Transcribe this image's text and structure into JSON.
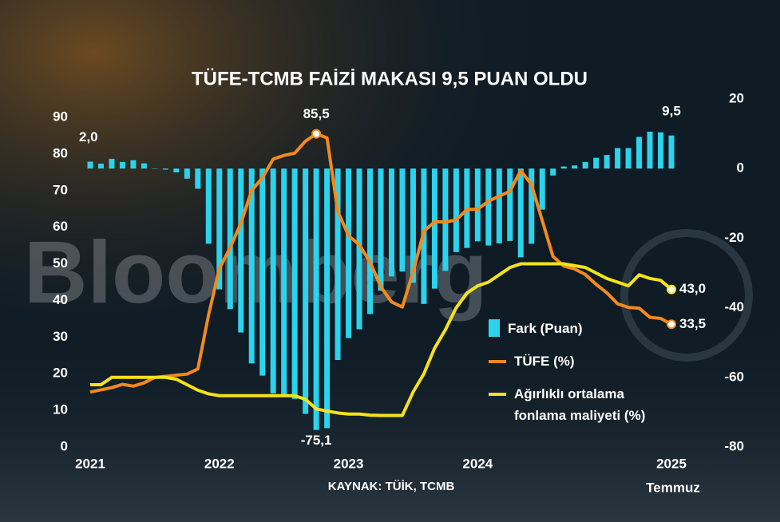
{
  "chart_data": {
    "type": "bar-line",
    "title": "TÜFE-TCMB FAİZİ MAKASI 9,5 PUAN OLDU",
    "watermark": "Bloomberg",
    "source": "KAYNAK: TÜİK, TCMB",
    "x_note": "Temmuz",
    "x": [
      0,
      1,
      2,
      3,
      4,
      5,
      6,
      7,
      8,
      9,
      10,
      11,
      12,
      13,
      14,
      15,
      16,
      17,
      18,
      19,
      20,
      21,
      22,
      23,
      24,
      25,
      26,
      27,
      28,
      29,
      30,
      31,
      32,
      33,
      34,
      35,
      36,
      37,
      38,
      39,
      40,
      41,
      42,
      43,
      44,
      45,
      46,
      47,
      48,
      49,
      50,
      51,
      52,
      53,
      54
    ],
    "xlim": [
      0,
      54
    ],
    "xticks": [
      {
        "value": 0,
        "label": "2021"
      },
      {
        "value": 12,
        "label": "2022"
      },
      {
        "value": 24,
        "label": "2023"
      },
      {
        "value": 36,
        "label": "2024"
      },
      {
        "value": 54,
        "label": "2025"
      }
    ],
    "ylim": [
      0,
      90
    ],
    "yticks": [
      0,
      10,
      20,
      30,
      40,
      50,
      60,
      70,
      80,
      90
    ],
    "y2lim": [
      -80,
      20
    ],
    "y2ticks": [
      -80,
      -60,
      -40,
      -20,
      0,
      20
    ],
    "series": [
      {
        "name": "Fark (Puan)",
        "type": "bar",
        "axis": "y2",
        "color": "#2bd3ec",
        "values": [
          2.0,
          1.4,
          2.8,
          1.9,
          2.4,
          1.5,
          0.0,
          -0.3,
          -1.1,
          -2.9,
          -5.8,
          -21.6,
          -34.7,
          -40.4,
          -47.1,
          -56.0,
          -59.5,
          -64.6,
          -65.6,
          -66.2,
          -70.5,
          -75.1,
          -74.6,
          -55.0,
          -48.7,
          -46.2,
          -41.8,
          -35.1,
          -31.0,
          -29.6,
          -32.8,
          -38.9,
          -34.5,
          -29.4,
          -24.0,
          -22.8,
          -20.9,
          -22.1,
          -21.5,
          -20.8,
          -25.5,
          -21.6,
          -11.8,
          -2.0,
          0.6,
          0.9,
          1.9,
          3.1,
          3.9,
          5.9,
          5.9,
          9.1,
          10.6,
          10.4,
          9.5
        ],
        "value_labels": [
          "2,0",
          null,
          null,
          null,
          null,
          null,
          null,
          null,
          null,
          null,
          null,
          null,
          null,
          null,
          null,
          null,
          null,
          null,
          null,
          null,
          null,
          "-75,1",
          null,
          null,
          null,
          null,
          null,
          null,
          null,
          null,
          null,
          null,
          null,
          null,
          null,
          null,
          null,
          null,
          null,
          null,
          null,
          null,
          null,
          null,
          null,
          null,
          null,
          null,
          null,
          null,
          null,
          null,
          null,
          null,
          "9,5"
        ]
      },
      {
        "name": "TÜFE (%)",
        "type": "line",
        "color": "#f28a1e",
        "values": [
          15.0,
          15.6,
          16.2,
          17.1,
          16.6,
          17.5,
          19.0,
          19.3,
          19.6,
          19.9,
          21.3,
          36.1,
          48.7,
          54.4,
          61.1,
          70.0,
          73.5,
          78.6,
          79.6,
          80.2,
          83.5,
          85.5,
          84.4,
          64.3,
          57.7,
          55.2,
          50.5,
          43.7,
          39.6,
          38.2,
          47.8,
          58.9,
          61.5,
          61.4,
          62.0,
          64.8,
          64.9,
          67.1,
          68.5,
          69.8,
          75.5,
          71.6,
          61.8,
          52.0,
          49.4,
          48.6,
          47.1,
          44.4,
          42.1,
          39.1,
          38.1,
          37.9,
          35.4,
          35.1,
          33.5
        ],
        "value_labels": [
          null,
          null,
          null,
          null,
          null,
          null,
          null,
          null,
          null,
          null,
          null,
          null,
          null,
          null,
          null,
          null,
          null,
          null,
          null,
          null,
          null,
          "85,5",
          null,
          null,
          null,
          null,
          null,
          null,
          null,
          null,
          null,
          null,
          null,
          null,
          null,
          null,
          null,
          null,
          null,
          null,
          null,
          null,
          null,
          null,
          null,
          null,
          null,
          null,
          null,
          null,
          null,
          null,
          null,
          null,
          "33,5"
        ]
      },
      {
        "name": "Ağırlıklı ortalama fonlama maliyeti (%)",
        "type": "line",
        "color": "#f6e21c",
        "values": [
          17,
          17,
          19,
          19,
          19,
          19,
          19,
          19,
          18.5,
          17,
          15.5,
          14.5,
          14,
          14,
          14,
          14,
          14,
          14,
          14,
          14,
          13,
          10.4,
          9.8,
          9.3,
          9,
          9,
          8.7,
          8.6,
          8.6,
          8.6,
          15,
          20,
          27,
          32,
          38,
          42,
          44,
          45,
          47,
          49,
          50,
          50,
          50,
          50,
          50,
          49.5,
          49,
          47.5,
          46,
          45,
          44,
          47,
          46,
          45.5,
          43
        ],
        "value_labels": [
          null,
          null,
          null,
          null,
          null,
          null,
          null,
          null,
          null,
          null,
          null,
          null,
          null,
          null,
          null,
          null,
          null,
          null,
          null,
          null,
          null,
          null,
          null,
          null,
          null,
          null,
          null,
          null,
          null,
          null,
          null,
          null,
          null,
          null,
          null,
          null,
          null,
          null,
          null,
          null,
          null,
          null,
          null,
          null,
          null,
          null,
          null,
          null,
          null,
          null,
          null,
          null,
          null,
          null,
          "43,0"
        ]
      }
    ]
  }
}
